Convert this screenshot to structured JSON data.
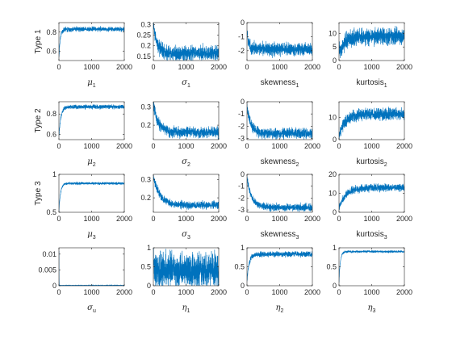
{
  "chart_data": [
    {
      "type": "line",
      "row": 0,
      "col": 0,
      "ylabel": "Type 1",
      "xlabel": {
        "base": "μ",
        "sub": "1",
        "greek": true
      },
      "xlim": [
        0,
        2000
      ],
      "ylim": [
        0.5,
        0.9
      ],
      "xticks": [
        0,
        1000,
        2000
      ],
      "yticks": [
        0.6,
        0.8
      ],
      "ytick_labels": [
        "0.6",
        "0.8"
      ],
      "series": [
        {
          "color": "#0072bd",
          "values": {
            "start": 0.52,
            "level": 0.83,
            "tau": 40,
            "noise": 0.012,
            "seed": 1
          }
        }
      ]
    },
    {
      "type": "line",
      "row": 0,
      "col": 1,
      "ylabel": "",
      "xlabel": {
        "base": "σ",
        "sub": "1",
        "greek": true
      },
      "xlim": [
        0,
        2000
      ],
      "ylim": [
        0.13,
        0.31
      ],
      "xticks": [
        0,
        1000,
        2000
      ],
      "yticks": [
        0.15,
        0.2,
        0.25,
        0.3
      ],
      "ytick_labels": [
        "0.15",
        "0.2",
        "0.25",
        "0.3"
      ],
      "series": [
        {
          "color": "#0072bd",
          "values": {
            "start": 0.3,
            "level": 0.165,
            "tau": 120,
            "noise": 0.017,
            "seed": 2
          }
        }
      ]
    },
    {
      "type": "line",
      "row": 0,
      "col": 2,
      "ylabel": "",
      "xlabel": {
        "base": "skewness",
        "sub": "1",
        "greek": false
      },
      "xlim": [
        0,
        2000
      ],
      "ylim": [
        -2.7,
        0
      ],
      "xticks": [
        0,
        1000,
        2000
      ],
      "yticks": [
        0,
        -1,
        -2
      ],
      "ytick_labels": [
        "0",
        "-1",
        "-2"
      ],
      "series": [
        {
          "color": "#0072bd",
          "values": {
            "start": -0.8,
            "level": -1.9,
            "tau": 60,
            "noise": 0.22,
            "seed": 3
          }
        }
      ]
    },
    {
      "type": "line",
      "row": 0,
      "col": 3,
      "ylabel": "",
      "xlabel": {
        "base": "kurtosis",
        "sub": "1",
        "greek": false
      },
      "xlim": [
        0,
        2000
      ],
      "ylim": [
        0,
        14
      ],
      "xticks": [
        0,
        1000,
        2000
      ],
      "yticks": [
        0,
        5,
        10
      ],
      "ytick_labels": [
        "0",
        "5",
        "10"
      ],
      "series": [
        {
          "color": "#0072bd",
          "values": {
            "start": 3,
            "level": 9,
            "tau": 200,
            "noise": 1.5,
            "seed": 4
          }
        }
      ]
    },
    {
      "type": "line",
      "row": 1,
      "col": 0,
      "ylabel": "Type 2",
      "xlabel": {
        "base": "μ",
        "sub": "2",
        "greek": true
      },
      "xlim": [
        0,
        2000
      ],
      "ylim": [
        0.55,
        0.92
      ],
      "xticks": [
        0,
        1000,
        2000
      ],
      "yticks": [
        0.6,
        0.8
      ],
      "ytick_labels": [
        "0.6",
        "0.8"
      ],
      "series": [
        {
          "color": "#0072bd",
          "values": {
            "start": 0.58,
            "level": 0.87,
            "tau": 60,
            "noise": 0.01,
            "seed": 5
          }
        }
      ]
    },
    {
      "type": "line",
      "row": 1,
      "col": 1,
      "ylabel": "",
      "xlabel": {
        "base": "σ",
        "sub": "2",
        "greek": true
      },
      "xlim": [
        0,
        2000
      ],
      "ylim": [
        0.12,
        0.33
      ],
      "xticks": [
        0,
        1000,
        2000
      ],
      "yticks": [
        0.2,
        0.3
      ],
      "ytick_labels": [
        "0.2",
        "0.3"
      ],
      "series": [
        {
          "color": "#0072bd",
          "values": {
            "start": 0.32,
            "level": 0.16,
            "tau": 150,
            "noise": 0.015,
            "seed": 6
          }
        }
      ]
    },
    {
      "type": "line",
      "row": 1,
      "col": 2,
      "ylabel": "",
      "xlabel": {
        "base": "skewness",
        "sub": "2",
        "greek": false
      },
      "xlim": [
        0,
        2000
      ],
      "ylim": [
        -3.1,
        0
      ],
      "xticks": [
        0,
        1000,
        2000
      ],
      "yticks": [
        0,
        -1,
        -2,
        -3
      ],
      "ytick_labels": [
        "0",
        "-1",
        "-2",
        "-3"
      ],
      "series": [
        {
          "color": "#0072bd",
          "values": {
            "start": -0.3,
            "level": -2.6,
            "tau": 120,
            "noise": 0.2,
            "seed": 7
          }
        }
      ]
    },
    {
      "type": "line",
      "row": 1,
      "col": 3,
      "ylabel": "",
      "xlabel": {
        "base": "kurtosis",
        "sub": "2",
        "greek": false
      },
      "xlim": [
        0,
        2000
      ],
      "ylim": [
        0,
        17
      ],
      "xticks": [
        0,
        1000,
        2000
      ],
      "yticks": [
        0,
        10
      ],
      "ytick_labels": [
        "0",
        "10"
      ],
      "series": [
        {
          "color": "#0072bd",
          "values": {
            "start": 2,
            "level": 11.5,
            "tau": 200,
            "noise": 1.3,
            "seed": 8
          }
        }
      ]
    },
    {
      "type": "line",
      "row": 2,
      "col": 0,
      "ylabel": "Type 3",
      "xlabel": {
        "base": "μ",
        "sub": "3",
        "greek": true
      },
      "xlim": [
        0,
        2000
      ],
      "ylim": [
        0.5,
        1.0
      ],
      "xticks": [
        0,
        1000,
        2000
      ],
      "yticks": [
        0.5,
        1
      ],
      "ytick_labels": [
        "0.5",
        "1"
      ],
      "series": [
        {
          "color": "#0072bd",
          "values": {
            "start": 0.52,
            "level": 0.88,
            "tau": 50,
            "noise": 0.008,
            "seed": 9
          }
        }
      ]
    },
    {
      "type": "line",
      "row": 2,
      "col": 1,
      "ylabel": "",
      "xlabel": {
        "base": "σ",
        "sub": "3",
        "greek": true
      },
      "xlim": [
        0,
        2000
      ],
      "ylim": [
        0.12,
        0.33
      ],
      "xticks": [
        0,
        1000,
        2000
      ],
      "yticks": [
        0.2,
        0.3
      ],
      "ytick_labels": [
        "0.2",
        "0.3"
      ],
      "series": [
        {
          "color": "#0072bd",
          "values": {
            "start": 0.32,
            "level": 0.16,
            "tau": 200,
            "noise": 0.01,
            "seed": 10
          }
        }
      ]
    },
    {
      "type": "line",
      "row": 2,
      "col": 2,
      "ylabel": "",
      "xlabel": {
        "base": "skewness",
        "sub": "3",
        "greek": false
      },
      "xlim": [
        0,
        2000
      ],
      "ylim": [
        -3.2,
        0
      ],
      "xticks": [
        0,
        1000,
        2000
      ],
      "yticks": [
        0,
        -1,
        -2,
        -3
      ],
      "ytick_labels": [
        "0",
        "-1",
        "-2",
        "-3"
      ],
      "series": [
        {
          "color": "#0072bd",
          "values": {
            "start": -0.4,
            "level": -2.8,
            "tau": 150,
            "noise": 0.15,
            "seed": 11
          }
        }
      ]
    },
    {
      "type": "line",
      "row": 2,
      "col": 3,
      "ylabel": "",
      "xlabel": {
        "base": "kurtosis",
        "sub": "3",
        "greek": false
      },
      "xlim": [
        0,
        2000
      ],
      "ylim": [
        0,
        20
      ],
      "xticks": [
        0,
        1000,
        2000
      ],
      "yticks": [
        0,
        10,
        20
      ],
      "ytick_labels": [
        "0",
        "10",
        "20"
      ],
      "series": [
        {
          "color": "#0072bd",
          "values": {
            "start": 2,
            "level": 13,
            "tau": 200,
            "noise": 1.0,
            "seed": 12
          }
        }
      ]
    },
    {
      "type": "line",
      "row": 3,
      "col": 0,
      "ylabel": "",
      "xlabel": {
        "base": "σ",
        "sub": "u",
        "greek": true
      },
      "xlim": [
        0,
        2000
      ],
      "ylim": [
        0,
        0.012
      ],
      "xticks": [
        0,
        1000,
        2000
      ],
      "yticks": [
        0,
        0.005,
        0.01
      ],
      "ytick_labels": [
        "0",
        "0.005",
        "0.01"
      ],
      "series": [
        {
          "color": "#0072bd",
          "values": {
            "start": 0.011,
            "level": 0.0001,
            "tau": 3,
            "noise": 3e-05,
            "seed": 13
          }
        }
      ]
    },
    {
      "type": "line",
      "row": 3,
      "col": 1,
      "ylabel": "",
      "xlabel": {
        "base": "η",
        "sub": "1",
        "greek": true
      },
      "xlim": [
        0,
        2000
      ],
      "ylim": [
        0,
        1
      ],
      "xticks": [
        0,
        1000,
        2000
      ],
      "yticks": [
        0,
        0.5,
        1
      ],
      "ytick_labels": [
        "0",
        "0.5",
        "1"
      ],
      "series": [
        {
          "color": "#0072bd",
          "values": {
            "start": 0.6,
            "level": 0.4,
            "tau": 60,
            "noise": 0.22,
            "seed": 14
          }
        }
      ]
    },
    {
      "type": "line",
      "row": 3,
      "col": 2,
      "ylabel": "",
      "xlabel": {
        "base": "η",
        "sub": "2",
        "greek": true
      },
      "xlim": [
        0,
        2000
      ],
      "ylim": [
        0,
        1
      ],
      "xticks": [
        0,
        1000,
        2000
      ],
      "yticks": [
        0,
        0.5,
        1
      ],
      "ytick_labels": [
        "0",
        "0.5",
        "1"
      ],
      "series": [
        {
          "color": "#0072bd",
          "values": {
            "start": 0.1,
            "level": 0.83,
            "tau": 60,
            "noise": 0.035,
            "seed": 15
          }
        }
      ]
    },
    {
      "type": "line",
      "row": 3,
      "col": 3,
      "ylabel": "",
      "xlabel": {
        "base": "η",
        "sub": "3",
        "greek": true
      },
      "xlim": [
        0,
        2000
      ],
      "ylim": [
        0,
        1
      ],
      "xticks": [
        0,
        1000,
        2000
      ],
      "yticks": [
        0,
        0.5,
        1
      ],
      "ytick_labels": [
        "0",
        "0.5",
        "1"
      ],
      "series": [
        {
          "color": "#0072bd",
          "values": {
            "start": 0.1,
            "level": 0.9,
            "tau": 40,
            "noise": 0.015,
            "seed": 16
          }
        }
      ]
    }
  ]
}
